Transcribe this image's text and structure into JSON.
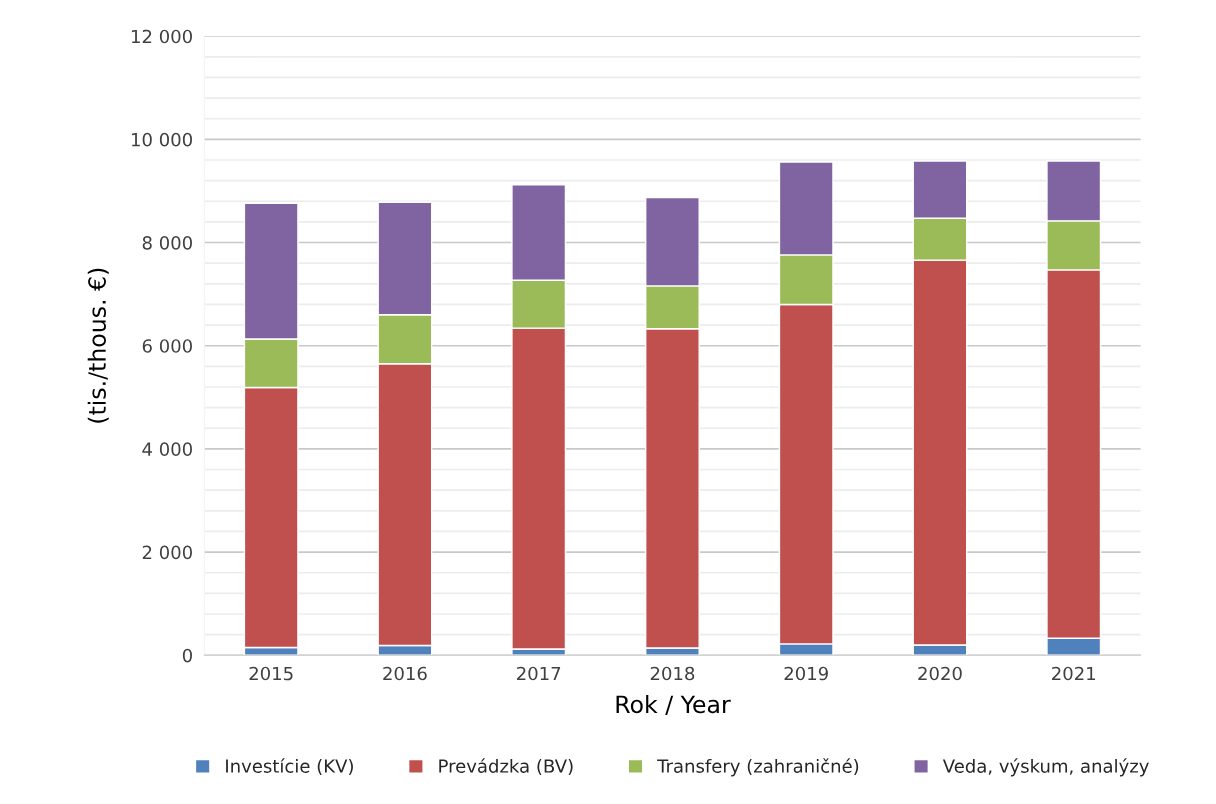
{
  "chart_data": {
    "type": "bar",
    "stacked": true,
    "xlabel": "Rok / Year",
    "ylabel": "(tis./thous. €)",
    "categories": [
      "2015",
      "2016",
      "2017",
      "2018",
      "2019",
      "2020",
      "2021"
    ],
    "series": [
      {
        "name": "Investície (KV)",
        "color": "#4f81bd",
        "values": [
          150,
          190,
          120,
          140,
          220,
          200,
          330
        ]
      },
      {
        "name": "Prevádzka (BV)",
        "color": "#c0504d",
        "values": [
          5040,
          5460,
          6220,
          6190,
          6580,
          7460,
          7140
        ]
      },
      {
        "name": "Transfery (zahraničné)",
        "color": "#9bbb59",
        "values": [
          940,
          950,
          930,
          830,
          960,
          810,
          950
        ]
      },
      {
        "name": "Veda, výskum, analýzy",
        "color": "#8064a2",
        "values": [
          2630,
          2180,
          1850,
          1710,
          1800,
          1110,
          1160
        ]
      }
    ],
    "ylim": [
      0,
      12000
    ],
    "yticks": [
      0,
      {
        "value": 400,
        "label": null
      },
      {
        "value": 800,
        "label": null
      },
      {
        "value": 1200,
        "label": null
      },
      {
        "value": 1600,
        "label": null
      },
      {
        "value": 2000,
        "label": "2 000"
      },
      {
        "value": 2400,
        "label": null
      },
      {
        "value": 2800,
        "label": null
      },
      {
        "value": 3200,
        "label": null
      },
      {
        "value": 3600,
        "label": null
      },
      {
        "value": 4000,
        "label": "4 000"
      },
      {
        "value": 4400,
        "label": null
      },
      {
        "value": 4800,
        "label": null
      },
      {
        "value": 5200,
        "label": null
      },
      {
        "value": 5600,
        "label": null
      },
      {
        "value": 6000,
        "label": "6 000"
      },
      {
        "value": 6400,
        "label": null
      },
      {
        "value": 6800,
        "label": null
      },
      {
        "value": 7200,
        "label": null
      },
      {
        "value": 7600,
        "label": null
      },
      {
        "value": 8000,
        "label": "8 000"
      },
      {
        "value": 8400,
        "label": null
      },
      {
        "value": 8800,
        "label": null
      },
      {
        "value": 9200,
        "label": null
      },
      {
        "value": 9600,
        "label": null
      },
      {
        "value": 10000,
        "label": "10 000"
      },
      {
        "value": 10400,
        "label": null
      },
      {
        "value": 10800,
        "label": null
      },
      {
        "value": 11200,
        "label": null
      },
      {
        "value": 11600,
        "label": null
      },
      {
        "value": 12000,
        "label": "12 000"
      }
    ],
    "grid": "y",
    "legend": "bottom"
  }
}
